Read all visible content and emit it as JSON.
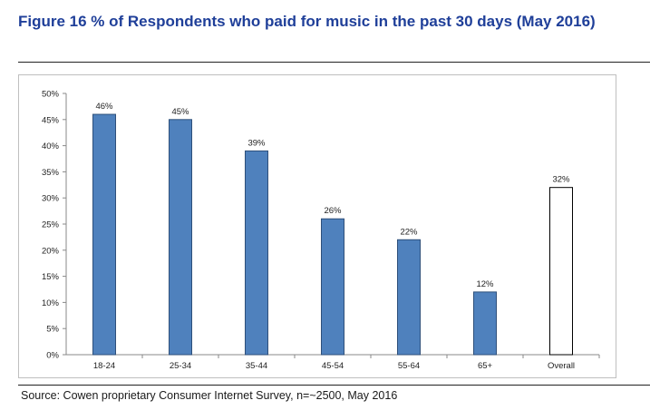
{
  "figure": {
    "title": "Figure 16 % of Respondents who paid for music in the past 30 days (May 2016)",
    "source": "Source: Cowen proprietary Consumer Internet Survey, n=~2500, May 2016"
  },
  "colors": {
    "title": "#1f3f99",
    "bar": "#4f81bd",
    "bar_outline": "#2e4f7a",
    "overall_bar": "#ffffff"
  },
  "chart_data": {
    "type": "bar",
    "categories": [
      "18-24",
      "25-34",
      "35-44",
      "45-54",
      "55-64",
      "65+",
      "Overall"
    ],
    "values": [
      46,
      45,
      39,
      26,
      22,
      12,
      32
    ],
    "data_labels": [
      "46%",
      "45%",
      "39%",
      "26%",
      "22%",
      "12%",
      "32%"
    ],
    "highlight": {
      "category": "Overall",
      "style": "white fill with black outline"
    },
    "title": "",
    "xlabel": "",
    "ylabel": "",
    "ylim": [
      0,
      50
    ],
    "yticks": [
      0,
      5,
      10,
      15,
      20,
      25,
      30,
      35,
      40,
      45,
      50
    ],
    "ytick_labels": [
      "0%",
      "5%",
      "10%",
      "15%",
      "20%",
      "25%",
      "30%",
      "35%",
      "40%",
      "45%",
      "50%"
    ],
    "grid": false,
    "legend": "none"
  }
}
